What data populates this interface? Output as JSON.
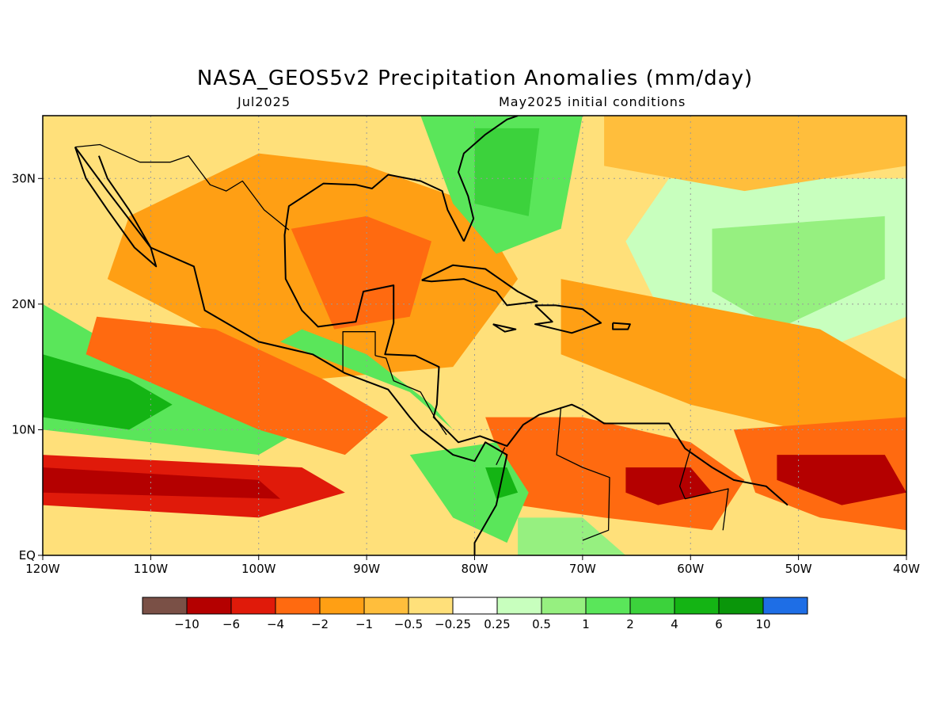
{
  "title": "NASA_GEOS5v2 Precipitation Anomalies (mm/day)",
  "subtitle_left": "Jul2025",
  "subtitle_right": "May2025 initial conditions",
  "extent": {
    "lon": [
      -120,
      -40
    ],
    "lat": [
      0,
      35
    ]
  },
  "lon_ticks": [
    {
      "value": -120,
      "label": "120W"
    },
    {
      "value": -110,
      "label": "110W"
    },
    {
      "value": -100,
      "label": "100W"
    },
    {
      "value": -90,
      "label": "90W"
    },
    {
      "value": -80,
      "label": "80W"
    },
    {
      "value": -70,
      "label": "70W"
    },
    {
      "value": -60,
      "label": "60W"
    },
    {
      "value": -50,
      "label": "50W"
    },
    {
      "value": -40,
      "label": "40W"
    }
  ],
  "lat_ticks": [
    {
      "value": 0,
      "label": "EQ"
    },
    {
      "value": 10,
      "label": "10N"
    },
    {
      "value": 20,
      "label": "20N"
    },
    {
      "value": 30,
      "label": "30N"
    }
  ],
  "colorbar": {
    "colors": [
      "#7a5046",
      "#b40000",
      "#e01a0a",
      "#ff6a10",
      "#ff9f14",
      "#ffbe3c",
      "#ffe07a",
      "#ffffff",
      "#c8ffbe",
      "#96f080",
      "#5ae65a",
      "#3cd23c",
      "#14b414",
      "#0a960a",
      "#1e6ee6"
    ],
    "labels": [
      "-10",
      "-6",
      "-4",
      "-2",
      "-1",
      "-0.5",
      "-0.25",
      "0.25",
      "0.5",
      "1",
      "2",
      "4",
      "6",
      "10"
    ]
  },
  "anomaly_regions": [
    {
      "name": "background-mild-deficit",
      "value": -0.4,
      "points": [
        [
          -120,
          0
        ],
        [
          -40,
          0
        ],
        [
          -40,
          35
        ],
        [
          -120,
          35
        ]
      ]
    },
    {
      "name": "north-atlantic-weak-wet",
      "value": 0.4,
      "points": [
        [
          -62,
          30
        ],
        [
          -40,
          30
        ],
        [
          -40,
          19
        ],
        [
          -55,
          14
        ],
        [
          -62,
          18
        ],
        [
          -66,
          25
        ]
      ]
    },
    {
      "name": "north-atlantic-greenish",
      "value": 0.7,
      "points": [
        [
          -58,
          26
        ],
        [
          -42,
          27
        ],
        [
          -42,
          22
        ],
        [
          -52,
          18
        ],
        [
          -58,
          21
        ]
      ]
    },
    {
      "name": "atlantic-dry-belt",
      "value": -1.5,
      "points": [
        [
          -72,
          22
        ],
        [
          -48,
          18
        ],
        [
          -40,
          14
        ],
        [
          -40,
          8
        ],
        [
          -60,
          12
        ],
        [
          -72,
          16
        ]
      ]
    },
    {
      "name": "far-north-atlantic-dry",
      "value": -0.8,
      "points": [
        [
          -68,
          35
        ],
        [
          -40,
          35
        ],
        [
          -40,
          31
        ],
        [
          -55,
          29
        ],
        [
          -68,
          31
        ]
      ]
    },
    {
      "name": "mexico-gulf-dry",
      "value": -1.5,
      "points": [
        [
          -112,
          27
        ],
        [
          -100,
          32
        ],
        [
          -90,
          31
        ],
        [
          -80,
          28
        ],
        [
          -76,
          22
        ],
        [
          -82,
          15
        ],
        [
          -95,
          14
        ],
        [
          -105,
          18
        ],
        [
          -114,
          22
        ]
      ]
    },
    {
      "name": "gulf-core-dry",
      "value": -2.5,
      "points": [
        [
          -97,
          26
        ],
        [
          -90,
          27
        ],
        [
          -84,
          25
        ],
        [
          -86,
          19
        ],
        [
          -93,
          18
        ]
      ]
    },
    {
      "name": "southeast-us-wet",
      "value": 2.0,
      "points": [
        [
          -85,
          35
        ],
        [
          -70,
          35
        ],
        [
          -72,
          26
        ],
        [
          -78,
          24
        ],
        [
          -82,
          28
        ]
      ]
    },
    {
      "name": "florida-core-wet",
      "value": 3.0,
      "points": [
        [
          -80,
          34
        ],
        [
          -74,
          34
        ],
        [
          -75,
          27
        ],
        [
          -80,
          28
        ]
      ]
    },
    {
      "name": "east-pacific-wet-belt",
      "value": 1.5,
      "points": [
        [
          -120,
          20
        ],
        [
          -114,
          17
        ],
        [
          -104,
          14
        ],
        [
          -96,
          10
        ],
        [
          -100,
          8
        ],
        [
          -110,
          9
        ],
        [
          -120,
          10
        ]
      ]
    },
    {
      "name": "east-pacific-wet-core",
      "value": 5.0,
      "points": [
        [
          -120,
          16
        ],
        [
          -112,
          14
        ],
        [
          -108,
          12
        ],
        [
          -112,
          10
        ],
        [
          -120,
          11
        ]
      ]
    },
    {
      "name": "mexico-pacific-coast-dry",
      "value": -3.0,
      "points": [
        [
          -115,
          19
        ],
        [
          -104,
          18
        ],
        [
          -94,
          14
        ],
        [
          -88,
          11
        ],
        [
          -92,
          8
        ],
        [
          -100,
          10
        ],
        [
          -108,
          13
        ],
        [
          -116,
          16
        ]
      ]
    },
    {
      "name": "itcz-south-dry",
      "value": -4.0,
      "points": [
        [
          -120,
          8
        ],
        [
          -96,
          7
        ],
        [
          -92,
          5
        ],
        [
          -100,
          3
        ],
        [
          -120,
          4
        ]
      ]
    },
    {
      "name": "itcz-south-core",
      "value": -7.0,
      "points": [
        [
          -120,
          7
        ],
        [
          -100,
          6
        ],
        [
          -98,
          4.5
        ],
        [
          -120,
          5
        ]
      ]
    },
    {
      "name": "central-america-wet",
      "value": 1.2,
      "points": [
        [
          -96,
          18
        ],
        [
          -90,
          16
        ],
        [
          -84,
          12
        ],
        [
          -82,
          10
        ],
        [
          -86,
          13
        ],
        [
          -92,
          15
        ],
        [
          -98,
          17
        ]
      ]
    },
    {
      "name": "colombia-venezuela-dry",
      "value": -3.0,
      "points": [
        [
          -79,
          11
        ],
        [
          -70,
          11
        ],
        [
          -60,
          9
        ],
        [
          -55,
          6
        ],
        [
          -58,
          2
        ],
        [
          -68,
          3
        ],
        [
          -76,
          4
        ]
      ]
    },
    {
      "name": "venezuela-core-dry",
      "value": -6.0,
      "points": [
        [
          -66,
          7
        ],
        [
          -60,
          7
        ],
        [
          -58,
          5
        ],
        [
          -63,
          4
        ],
        [
          -66,
          5
        ]
      ]
    },
    {
      "name": "panama-colombia-wet",
      "value": 2.0,
      "points": [
        [
          -86,
          8
        ],
        [
          -78,
          9
        ],
        [
          -75,
          5
        ],
        [
          -77,
          1
        ],
        [
          -82,
          3
        ]
      ]
    },
    {
      "name": "colombia-wet-core",
      "value": 6.0,
      "points": [
        [
          -79,
          7
        ],
        [
          -77,
          7
        ],
        [
          -76,
          5
        ],
        [
          -78,
          4.5
        ]
      ]
    },
    {
      "name": "tropical-atlantic-dry",
      "value": -3.0,
      "points": [
        [
          -56,
          10
        ],
        [
          -40,
          11
        ],
        [
          -40,
          2
        ],
        [
          -48,
          3
        ],
        [
          -54,
          5
        ]
      ]
    },
    {
      "name": "tropical-atlantic-core",
      "value": -6.0,
      "points": [
        [
          -52,
          8
        ],
        [
          -42,
          8
        ],
        [
          -40,
          5
        ],
        [
          -46,
          4
        ],
        [
          -52,
          6
        ]
      ]
    },
    {
      "name": "amazon-northwest-wet",
      "value": 1.0,
      "points": [
        [
          -76,
          3
        ],
        [
          -70,
          3
        ],
        [
          -66,
          0
        ],
        [
          -76,
          0
        ]
      ]
    }
  ],
  "coastlines": [
    {
      "name": "pacific-and-caribbean-coast",
      "points": [
        [
          -117,
          32.5
        ],
        [
          -114,
          29
        ],
        [
          -110,
          24.5
        ],
        [
          -106,
          23
        ],
        [
          -105,
          19.5
        ],
        [
          -100,
          17
        ],
        [
          -95,
          16
        ],
        [
          -92,
          14.5
        ],
        [
          -88,
          13.2
        ],
        [
          -86,
          11
        ],
        [
          -85,
          10
        ],
        [
          -82,
          8
        ],
        [
          -80,
          7.5
        ],
        [
          -79,
          9
        ],
        [
          -77,
          8
        ],
        [
          -78,
          4
        ],
        [
          -80,
          1
        ],
        [
          -80,
          0
        ]
      ]
    },
    {
      "name": "baja-california",
      "points": [
        [
          -117,
          32.5
        ],
        [
          -116,
          30
        ],
        [
          -114,
          27.5
        ],
        [
          -111.5,
          24.5
        ],
        [
          -109.5,
          23
        ],
        [
          -110,
          24.5
        ],
        [
          -112,
          27.5
        ],
        [
          -114,
          30
        ],
        [
          -114.8,
          31.8
        ]
      ]
    },
    {
      "name": "gulf-and-yucatan-coast",
      "points": [
        [
          -81,
          25
        ],
        [
          -82.5,
          27.5
        ],
        [
          -83,
          29
        ],
        [
          -85,
          29.8
        ],
        [
          -88,
          30.3
        ],
        [
          -89.5,
          29.2
        ],
        [
          -91,
          29.5
        ],
        [
          -94,
          29.6
        ],
        [
          -97.2,
          27.8
        ],
        [
          -97.6,
          25.5
        ],
        [
          -97.5,
          22
        ],
        [
          -96,
          19.5
        ],
        [
          -94.5,
          18.2
        ],
        [
          -91,
          18.6
        ],
        [
          -90.3,
          21
        ],
        [
          -87.5,
          21.5
        ],
        [
          -87.5,
          18.5
        ],
        [
          -88.3,
          16
        ],
        [
          -85.5,
          15.9
        ],
        [
          -83.3,
          15
        ],
        [
          -83.5,
          12
        ],
        [
          -83.8,
          11
        ],
        [
          -81.5,
          9
        ],
        [
          -79.5,
          9.5
        ],
        [
          -77,
          8.7
        ],
        [
          -75.5,
          10.4
        ],
        [
          -74,
          11.2
        ],
        [
          -71,
          12
        ],
        [
          -70,
          11.6
        ],
        [
          -68,
          10.5
        ],
        [
          -64,
          10.5
        ],
        [
          -62,
          10.5
        ],
        [
          -60.5,
          8.5
        ],
        [
          -58,
          7
        ],
        [
          -56,
          6
        ],
        [
          -53,
          5.5
        ],
        [
          -51,
          4
        ]
      ]
    },
    {
      "name": "us-atlantic-coast",
      "points": [
        [
          -81,
          25
        ],
        [
          -80.1,
          26.8
        ],
        [
          -80.6,
          28.6
        ],
        [
          -81.5,
          30.5
        ],
        [
          -81,
          32
        ],
        [
          -79,
          33.5
        ],
        [
          -77,
          34.7
        ],
        [
          -76,
          35
        ]
      ]
    },
    {
      "name": "cuba",
      "points": [
        [
          -84.9,
          21.9
        ],
        [
          -82,
          23.1
        ],
        [
          -79,
          22.8
        ],
        [
          -76,
          21
        ],
        [
          -74.2,
          20.2
        ],
        [
          -77,
          19.9
        ],
        [
          -78,
          21
        ],
        [
          -81,
          22
        ],
        [
          -84,
          21.8
        ],
        [
          -84.9,
          21.9
        ]
      ]
    },
    {
      "name": "hispaniola",
      "points": [
        [
          -74.4,
          19.9
        ],
        [
          -72.5,
          19.9
        ],
        [
          -70,
          19.6
        ],
        [
          -68.3,
          18.5
        ],
        [
          -71,
          17.7
        ],
        [
          -74.4,
          18.4
        ],
        [
          -72.8,
          18.6
        ],
        [
          -74.4,
          19.9
        ]
      ]
    },
    {
      "name": "jamaica",
      "points": [
        [
          -78.3,
          18.4
        ],
        [
          -76.2,
          18.0
        ],
        [
          -77.2,
          17.8
        ],
        [
          -78.3,
          18.4
        ]
      ]
    },
    {
      "name": "puerto-rico",
      "points": [
        [
          -67.2,
          18.5
        ],
        [
          -65.6,
          18.4
        ],
        [
          -65.8,
          18.0
        ],
        [
          -67.2,
          18.0
        ],
        [
          -67.2,
          18.5
        ]
      ]
    }
  ],
  "borders": [
    {
      "name": "us-mexico-border",
      "points": [
        [
          -117,
          32.5
        ],
        [
          -114.7,
          32.7
        ],
        [
          -111,
          31.3
        ],
        [
          -108.2,
          31.3
        ],
        [
          -106.5,
          31.8
        ],
        [
          -104.5,
          29.5
        ],
        [
          -103,
          29
        ],
        [
          -101.5,
          29.8
        ],
        [
          -99.5,
          27.5
        ],
        [
          -97.2,
          25.9
        ]
      ]
    },
    {
      "name": "guatemala-border",
      "points": [
        [
          -92.2,
          14.6
        ],
        [
          -92.2,
          17.8
        ],
        [
          -89.2,
          17.8
        ],
        [
          -89.2,
          15.9
        ]
      ]
    },
    {
      "name": "central-america-borders",
      "points": [
        [
          -89.2,
          15.9
        ],
        [
          -88.2,
          15.7
        ],
        [
          -87.5,
          13.9
        ],
        [
          -85,
          13
        ],
        [
          -83.7,
          11
        ],
        [
          -82.6,
          9.6
        ]
      ]
    },
    {
      "name": "colombia-venezuela-border",
      "points": [
        [
          -72,
          11.8
        ],
        [
          -72.4,
          8
        ],
        [
          -70,
          7
        ],
        [
          -67.5,
          6.2
        ],
        [
          -67.6,
          2
        ],
        [
          -70,
          1.2
        ]
      ]
    },
    {
      "name": "venezuela-guyana-border",
      "points": [
        [
          -60,
          8.5
        ],
        [
          -61,
          5.5
        ],
        [
          -60.5,
          4.5
        ],
        [
          -56.5,
          5.3
        ],
        [
          -57,
          2
        ]
      ]
    },
    {
      "name": "colombia-panama-border",
      "points": [
        [
          -77.2,
          8.6
        ],
        [
          -78,
          7.2
        ]
      ]
    }
  ]
}
